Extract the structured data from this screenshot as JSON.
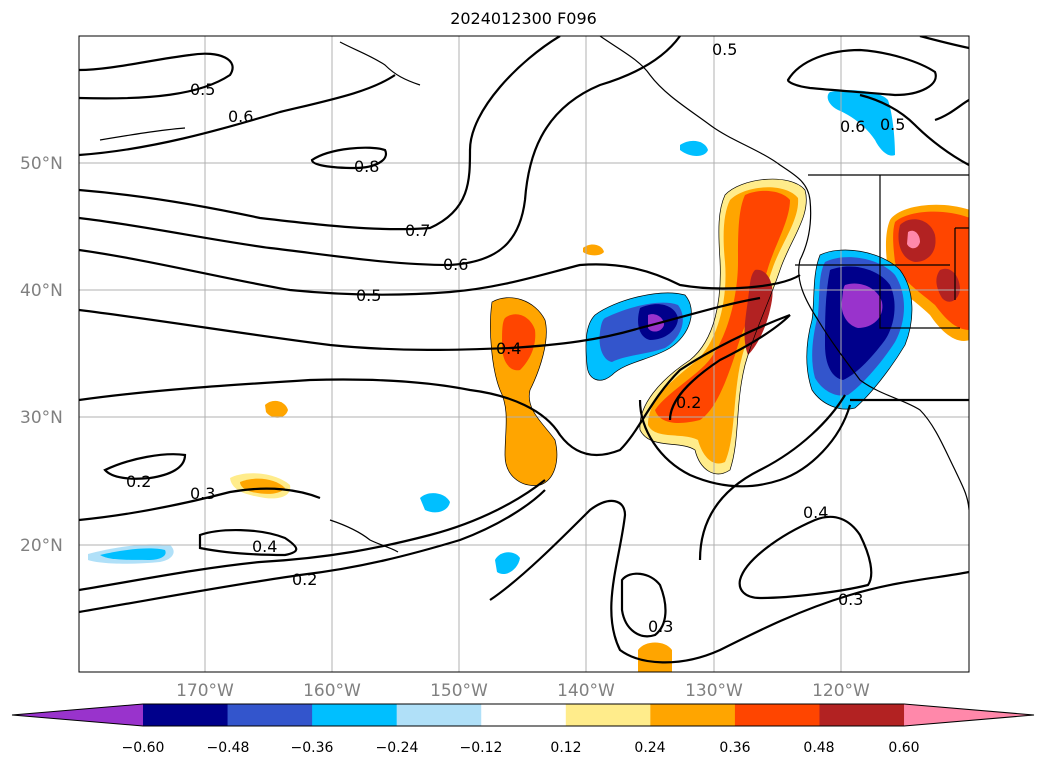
{
  "title": "2024012300 F096",
  "map": {
    "lat_labels": [
      "50°N",
      "40°N",
      "30°N",
      "20°N"
    ],
    "lon_labels": [
      "170°W",
      "160°W",
      "150°W",
      "140°W",
      "130°W",
      "120°W"
    ],
    "contour_labels": [
      "0.5",
      "0.6",
      "0.8",
      "0.7",
      "0.6",
      "0.5",
      "0.4",
      "0.2",
      "0.3",
      "0.2",
      "0.4",
      "0.2",
      "0.4",
      "0.3",
      "0.3",
      "0.5",
      "0.6",
      "0.5"
    ]
  },
  "colorbar": {
    "ticks": [
      "−0.60",
      "−0.48",
      "−0.36",
      "−0.24",
      "−0.12",
      "0.12",
      "0.24",
      "0.36",
      "0.48",
      "0.60"
    ],
    "colors": [
      "#9933cc",
      "#00008b",
      "#3355cc",
      "#00bfff",
      "#b0e0f8",
      "#ffffff",
      "#ffec8b",
      "#ffa500",
      "#ff4500",
      "#b22222",
      "#ff88aa"
    ]
  }
}
